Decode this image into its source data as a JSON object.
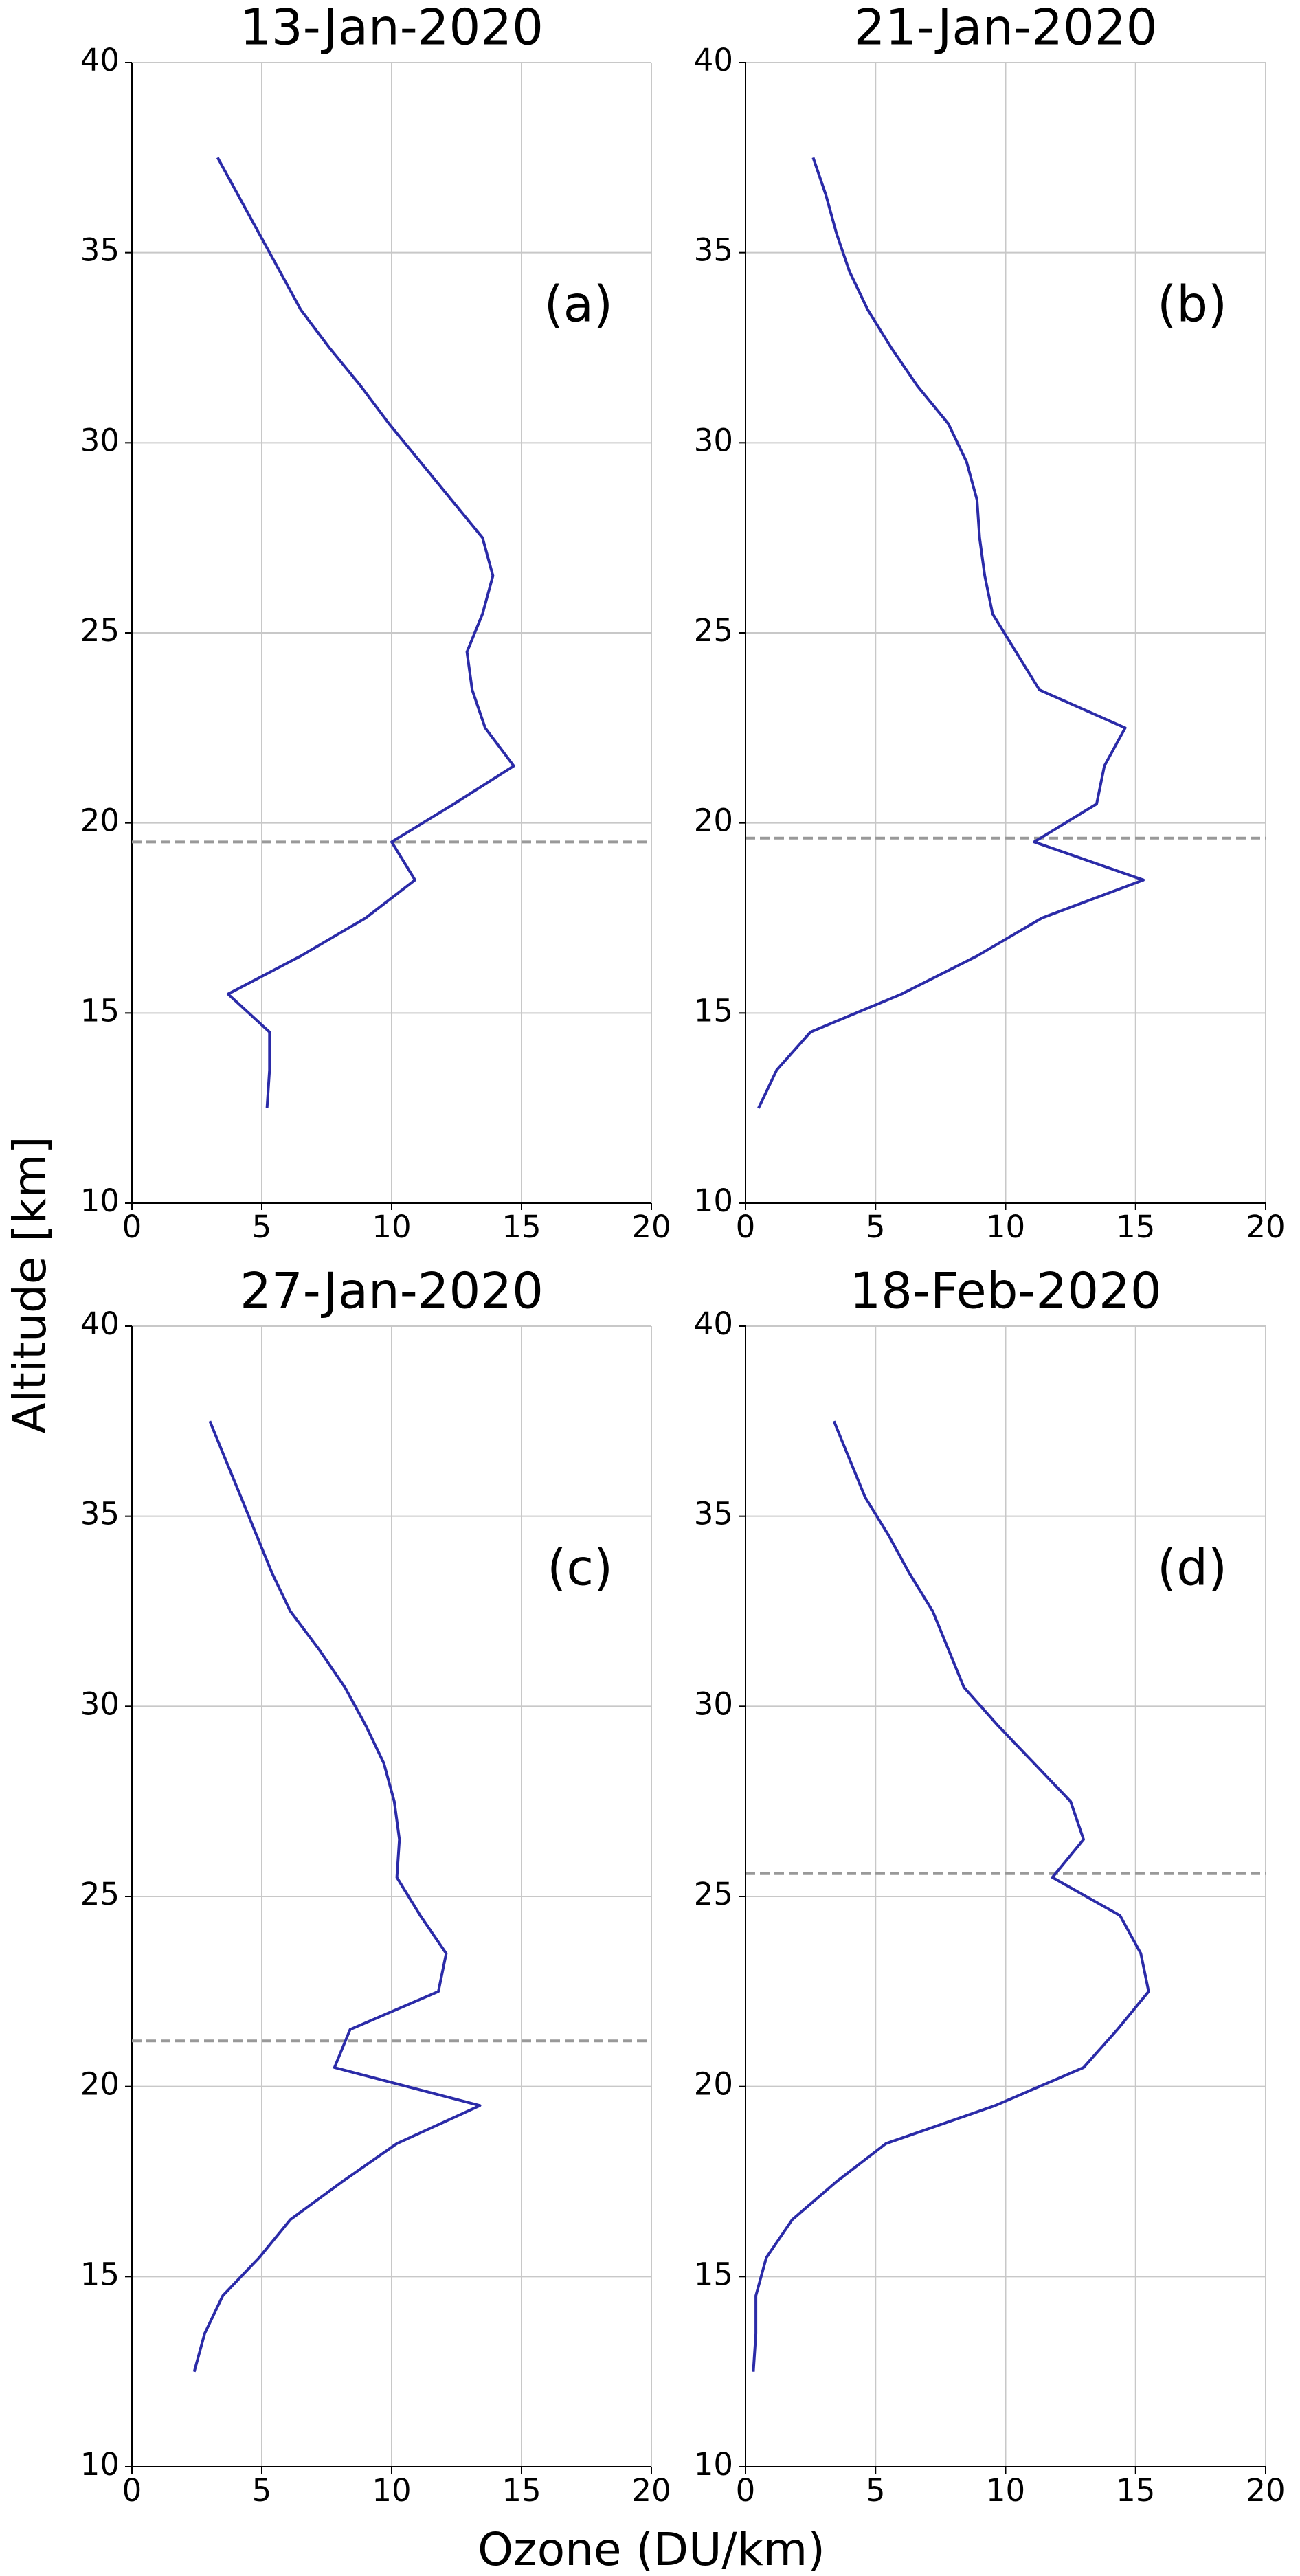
{
  "xlabel": "Ozone (DU/km)",
  "ylabel": "Altitude [km]",
  "chart_data": [
    {
      "type": "line",
      "title": "13-Jan-2020",
      "annotation": "(a)",
      "color": "#2b2ba8",
      "y": [
        37.5,
        36.5,
        35.5,
        34.5,
        33.5,
        32.5,
        31.5,
        30.5,
        29.5,
        28.5,
        27.5,
        26.5,
        25.5,
        24.5,
        23.5,
        22.5,
        21.5,
        20.5,
        19.5,
        18.5,
        17.5,
        16.5,
        15.5,
        14.5,
        13.5,
        12.5
      ],
      "x": [
        3.3,
        4.1,
        4.9,
        5.7,
        6.5,
        7.6,
        8.8,
        9.9,
        11.1,
        12.3,
        13.5,
        13.9,
        13.5,
        12.9,
        13.1,
        13.6,
        14.7,
        12.4,
        10.0,
        10.9,
        9.0,
        6.5,
        3.7,
        5.3,
        5.3,
        5.2
      ],
      "hline": 19.5,
      "hline_color": "#999999",
      "xlim": [
        0,
        20
      ],
      "ylim": [
        10,
        40
      ],
      "xticks": [
        0,
        5,
        10,
        15,
        20
      ],
      "yticks": [
        10,
        15,
        20,
        25,
        30,
        35,
        40
      ],
      "grid": true
    },
    {
      "type": "line",
      "title": "21-Jan-2020",
      "annotation": "(b)",
      "color": "#2b2ba8",
      "y": [
        37.5,
        36.5,
        35.5,
        34.5,
        33.5,
        32.5,
        31.5,
        30.5,
        29.5,
        28.5,
        27.5,
        26.5,
        25.5,
        24.5,
        23.5,
        22.5,
        21.5,
        20.5,
        19.5,
        18.5,
        17.5,
        16.5,
        15.5,
        14.5,
        13.5,
        12.5
      ],
      "x": [
        2.6,
        3.1,
        3.5,
        4.0,
        4.7,
        5.6,
        6.6,
        7.8,
        8.5,
        8.9,
        9.0,
        9.2,
        9.5,
        10.4,
        11.3,
        14.6,
        13.8,
        13.5,
        11.1,
        15.3,
        11.4,
        8.9,
        6.0,
        2.5,
        1.2,
        0.5
      ],
      "hline": 19.6,
      "hline_color": "#999999",
      "xlim": [
        0,
        20
      ],
      "ylim": [
        10,
        40
      ],
      "xticks": [
        0,
        5,
        10,
        15,
        20
      ],
      "yticks": [
        10,
        15,
        20,
        25,
        30,
        35,
        40
      ],
      "grid": true
    },
    {
      "type": "line",
      "title": "27-Jan-2020",
      "annotation": "(c)",
      "color": "#2b2ba8",
      "y": [
        37.5,
        36.5,
        35.5,
        34.5,
        33.5,
        32.5,
        31.5,
        30.5,
        29.5,
        28.5,
        27.5,
        26.5,
        25.5,
        24.5,
        23.5,
        22.5,
        21.5,
        20.5,
        19.5,
        18.5,
        17.5,
        16.5,
        15.5,
        14.5,
        13.5,
        12.5
      ],
      "x": [
        3.0,
        3.6,
        4.2,
        4.8,
        5.4,
        6.1,
        7.2,
        8.2,
        9.0,
        9.7,
        10.1,
        10.3,
        10.2,
        11.1,
        12.1,
        11.8,
        8.4,
        7.8,
        13.4,
        10.2,
        8.1,
        6.1,
        4.9,
        3.5,
        2.8,
        2.4
      ],
      "hline": 21.2,
      "hline_color": "#999999",
      "xlim": [
        0,
        20
      ],
      "ylim": [
        10,
        40
      ],
      "xticks": [
        0,
        5,
        10,
        15,
        20
      ],
      "yticks": [
        10,
        15,
        20,
        25,
        30,
        35,
        40
      ],
      "grid": true
    },
    {
      "type": "line",
      "title": "18-Feb-2020",
      "annotation": "(d)",
      "color": "#2b2ba8",
      "y": [
        37.5,
        36.5,
        35.5,
        34.5,
        33.5,
        32.5,
        31.5,
        30.5,
        29.5,
        28.5,
        27.5,
        26.5,
        25.5,
        24.5,
        23.5,
        22.5,
        21.5,
        20.5,
        19.5,
        18.5,
        17.5,
        16.5,
        15.5,
        14.5,
        13.5,
        12.5
      ],
      "x": [
        3.4,
        4.0,
        4.6,
        5.5,
        6.3,
        7.2,
        7.8,
        8.4,
        9.7,
        11.1,
        12.5,
        13.0,
        11.8,
        14.4,
        15.2,
        15.5,
        14.3,
        13.0,
        9.6,
        5.4,
        3.5,
        1.8,
        0.8,
        0.4,
        0.4,
        0.3
      ],
      "hline": 25.6,
      "hline_color": "#999999",
      "xlim": [
        0,
        20
      ],
      "ylim": [
        10,
        40
      ],
      "xticks": [
        0,
        5,
        10,
        15,
        20
      ],
      "yticks": [
        10,
        15,
        20,
        25,
        30,
        35,
        40
      ],
      "grid": true
    }
  ]
}
